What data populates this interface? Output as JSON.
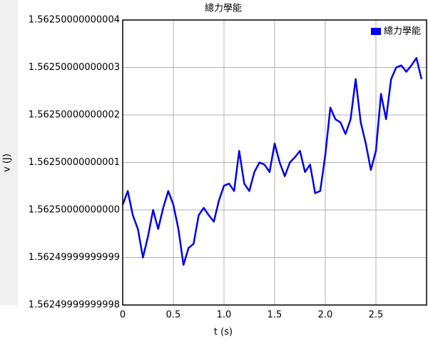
{
  "chart_data": {
    "type": "line",
    "title": "總力學能",
    "xlabel": "t (s)",
    "ylabel": "v (J)",
    "x": [
      0,
      0.05,
      0.1,
      0.15,
      0.2,
      0.25,
      0.3,
      0.35,
      0.4,
      0.45,
      0.5,
      0.55,
      0.6,
      0.65,
      0.7,
      0.75,
      0.8,
      0.85,
      0.9,
      0.95,
      1.0,
      1.05,
      1.1,
      1.15,
      1.2,
      1.25,
      1.3,
      1.35,
      1.4,
      1.45,
      1.5,
      1.55,
      1.6,
      1.65,
      1.7,
      1.75,
      1.8,
      1.85,
      1.9,
      1.95,
      2.0,
      2.05,
      2.1,
      2.15,
      2.2,
      2.25,
      2.3,
      2.35,
      2.4,
      2.45,
      2.5,
      2.55,
      2.6,
      2.65,
      2.7,
      2.75,
      2.8,
      2.85,
      2.9,
      2.95
    ],
    "series": [
      {
        "name": "總力學能",
        "color": "#0000ee",
        "values": [
          1.562500000000001,
          1.562500000000004,
          1.562499999999999,
          1.562499999999996,
          1.56249999999999,
          1.5624999999999944,
          1.5625,
          1.562499999999996,
          1.5625000000000004,
          1.562500000000004,
          1.562500000000001,
          1.562499999999996,
          1.5624999999999885,
          1.562499999999992,
          1.562499999999993,
          1.562499999999999,
          1.5625000000000004,
          1.562499999999999,
          1.5624999999999976,
          1.562500000000002,
          1.562500000000005,
          1.5625000000000056,
          1.562500000000004,
          1.5625000000000124,
          1.5625000000000056,
          1.562500000000004,
          1.562500000000008,
          1.56250000000001,
          1.5625000000000095,
          1.562500000000008,
          1.562500000000014,
          1.56250000000001,
          1.562500000000007,
          1.56250000000001,
          1.562500000000011,
          1.5625000000000124,
          1.562500000000008,
          1.5625000000000095,
          1.5625000000000036,
          1.562500000000004,
          1.5625000000000115,
          1.5625000000000215,
          1.562500000000019,
          1.5625000000000184,
          1.562500000000016,
          1.562500000000019,
          1.5625000000000275,
          1.5625000000000184,
          1.562500000000014,
          1.5625000000000084,
          1.5625000000000124,
          1.5625000000000244,
          1.562500000000019,
          1.5625000000000275,
          1.56250000000003,
          1.5625000000000304,
          1.562500000000029,
          1.5625000000000304,
          1.562500000000032,
          1.5625000000000275
        ]
      }
    ],
    "xlim": [
      0,
      3.0
    ],
    "xticks": [
      0,
      0.5,
      {
        "value": 1.0,
        "label": "1.0"
      },
      1.5,
      {
        "value": 2.0,
        "label": "2.0"
      },
      2.5
    ],
    "ylim": [
      1.56249999999998,
      1.56250000000004
    ],
    "yticks": [
      1.56249999999998,
      1.56249999999999,
      {
        "value": 1.5625,
        "label": "1.56250000000000"
      },
      1.56250000000001,
      1.56250000000002,
      1.56250000000003,
      1.56250000000004
    ],
    "grid": true,
    "legend": "upper right"
  }
}
